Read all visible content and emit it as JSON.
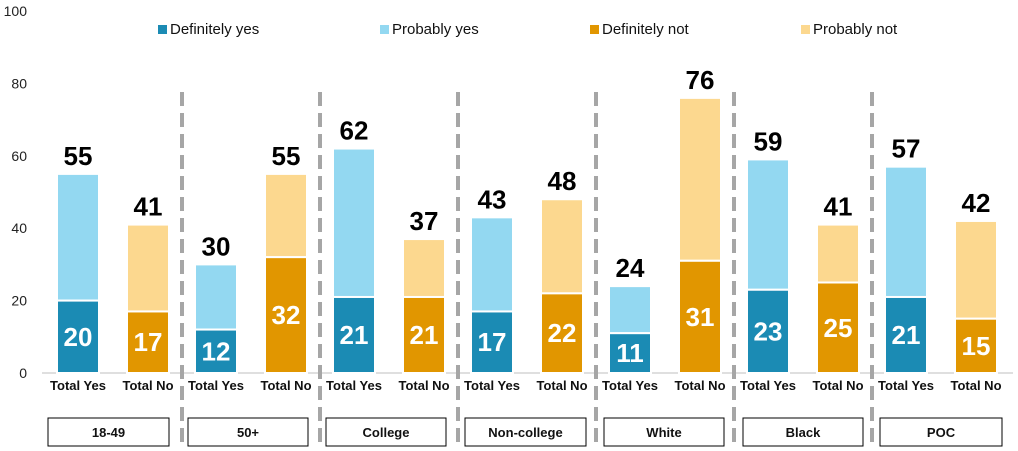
{
  "chart_data": {
    "type": "bar",
    "stacked": true,
    "ylim": [
      0,
      100
    ],
    "yticks": [
      0,
      20,
      40,
      60,
      80,
      100
    ],
    "grid": false,
    "legend_position": "top",
    "legend": [
      {
        "name": "Definitely yes",
        "color": "#1b8bb4"
      },
      {
        "name": "Probably yes",
        "color": "#93d8f1"
      },
      {
        "name": "Definitely not",
        "color": "#e19600"
      },
      {
        "name": "Probably not",
        "color": "#fcd88f"
      }
    ],
    "groups": [
      {
        "label": "18-49",
        "bars": [
          {
            "category": "Total Yes",
            "kind": "yes",
            "base": 20,
            "top_value": 35,
            "total": 55
          },
          {
            "category": "Total No",
            "kind": "no",
            "base": 17,
            "top_value": 24,
            "total": 41
          }
        ]
      },
      {
        "label": "50+",
        "bars": [
          {
            "category": "Total Yes",
            "kind": "yes",
            "base": 12,
            "top_value": 18,
            "total": 30
          },
          {
            "category": "Total No",
            "kind": "no",
            "base": 32,
            "top_value": 23,
            "total": 55
          }
        ]
      },
      {
        "label": "College",
        "bars": [
          {
            "category": "Total Yes",
            "kind": "yes",
            "base": 21,
            "top_value": 41,
            "total": 62
          },
          {
            "category": "Total No",
            "kind": "no",
            "base": 21,
            "top_value": 16,
            "total": 37
          }
        ]
      },
      {
        "label": "Non-college",
        "bars": [
          {
            "category": "Total Yes",
            "kind": "yes",
            "base": 17,
            "top_value": 26,
            "total": 43
          },
          {
            "category": "Total No",
            "kind": "no",
            "base": 22,
            "top_value": 26,
            "total": 48
          }
        ]
      },
      {
        "label": "White",
        "bars": [
          {
            "category": "Total Yes",
            "kind": "yes",
            "base": 11,
            "top_value": 13,
            "total": 24
          },
          {
            "category": "Total No",
            "kind": "no",
            "base": 31,
            "top_value": 45,
            "total": 76
          }
        ]
      },
      {
        "label": "Black",
        "bars": [
          {
            "category": "Total Yes",
            "kind": "yes",
            "base": 23,
            "top_value": 36,
            "total": 59
          },
          {
            "category": "Total No",
            "kind": "no",
            "base": 25,
            "top_value": 16,
            "total": 41
          }
        ]
      },
      {
        "label": "POC",
        "bars": [
          {
            "category": "Total Yes",
            "kind": "yes",
            "base": 21,
            "top_value": 36,
            "total": 57
          },
          {
            "category": "Total No",
            "kind": "no",
            "base": 15,
            "top_value": 27,
            "total": 42
          }
        ]
      }
    ]
  }
}
